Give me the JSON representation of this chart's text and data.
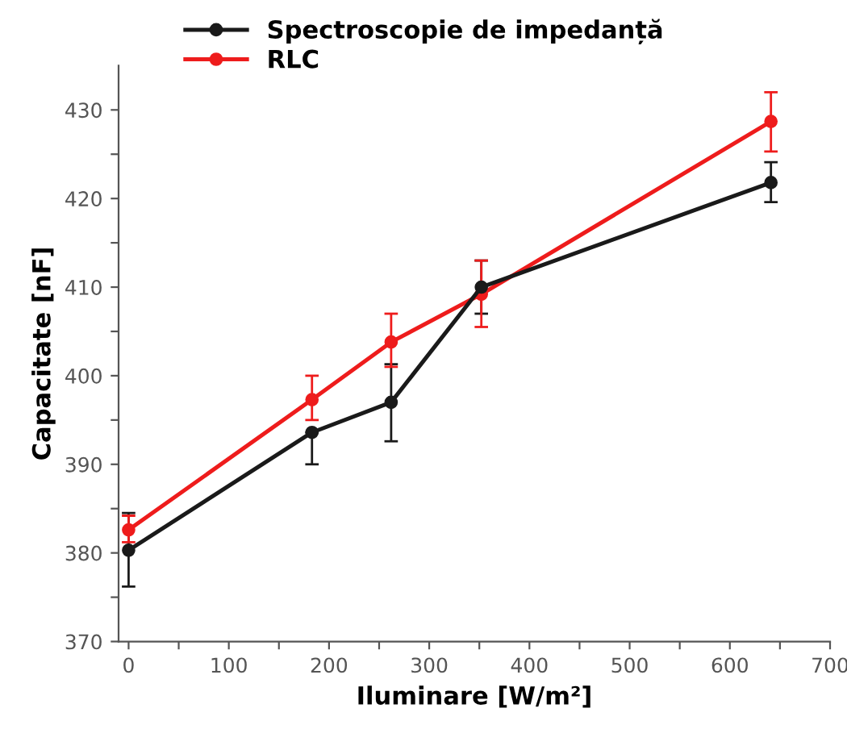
{
  "chart_data": {
    "type": "line",
    "xlabel": "Iluminare [W/m²]",
    "ylabel": "Capacitate [nF]",
    "xlim": [
      -10,
      700
    ],
    "ylim": [
      370,
      435
    ],
    "xticks": [
      0,
      {
        "value": 50,
        "label": null
      },
      100,
      {
        "value": 150,
        "label": null
      },
      200,
      {
        "value": 250,
        "label": null
      },
      300,
      {
        "value": 350,
        "label": null
      },
      400,
      {
        "value": 450,
        "label": null
      },
      500,
      {
        "value": 550,
        "label": null
      },
      600,
      {
        "value": 650,
        "label": null
      },
      700
    ],
    "yticks": [
      370,
      {
        "value": 375,
        "label": null
      },
      380,
      {
        "value": 385,
        "label": null
      },
      390,
      {
        "value": 395,
        "label": null
      },
      400,
      {
        "value": 405,
        "label": null
      },
      410,
      {
        "value": 415,
        "label": null
      },
      420,
      {
        "value": 425,
        "label": null
      },
      430
    ],
    "x": [
      0,
      183,
      262,
      352,
      641
    ],
    "series": [
      {
        "name": "Spectroscopie de impedanță",
        "color": "#1a1a1a",
        "values": [
          380.3,
          393.6,
          397,
          410,
          421.8
        ],
        "errors": [
          [
            376.2,
            384.5
          ],
          [
            390,
            393.6
          ],
          [
            392.6,
            401.3
          ],
          [
            407,
            413
          ],
          [
            419.6,
            424.1
          ]
        ]
      },
      {
        "name": "RLC",
        "color": "#ee1c1c",
        "values": [
          382.6,
          397.3,
          403.8,
          409.2,
          428.7
        ],
        "errors": [
          [
            381.2,
            384.2
          ],
          [
            395,
            400
          ],
          [
            401,
            407
          ],
          [
            405.5,
            413
          ],
          [
            425.3,
            432
          ]
        ]
      }
    ],
    "marker": "circle",
    "line_style": "solid",
    "grid": false,
    "legend": "top left"
  }
}
